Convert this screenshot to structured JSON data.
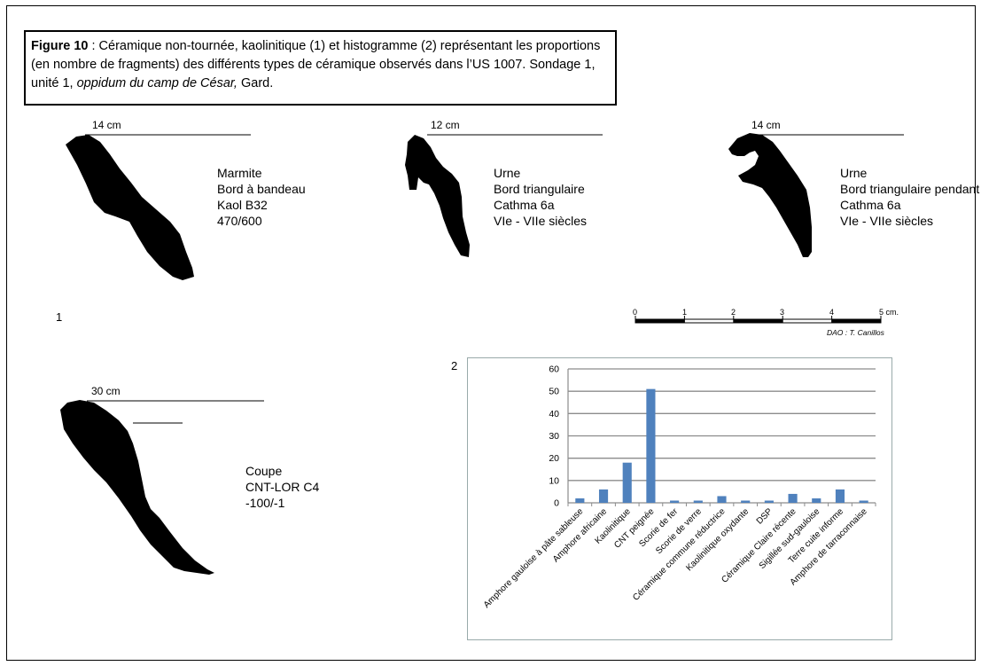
{
  "caption": {
    "fig_label": "Figure 10",
    "text_1": " : Céramique non-tournée, kaolinitique (1) et histogramme (2) représentant les proportions (en nombre de fragments) des différents types de céramique observés dans l’US 1007. Sondage 1, unité 1, ",
    "italic": "oppidum du camp de César,",
    "text_2": " Gard."
  },
  "sherds": [
    {
      "dim": "14 cm",
      "lines": [
        "Marmite",
        "Bord à bandeau",
        "Kaol B32",
        "470/600"
      ]
    },
    {
      "dim": "12 cm",
      "lines": [
        "Urne",
        "Bord triangulaire",
        "Cathma 6a",
        "VIe - VIIe siècles"
      ]
    },
    {
      "dim": "14 cm",
      "lines": [
        "Urne",
        "Bord triangulaire pendant",
        "Cathma 6a",
        "VIe - VIIe siècles"
      ]
    },
    {
      "dim": "30 cm",
      "lines": [
        "Coupe",
        "CNT-LOR C4",
        "-100/-1"
      ]
    }
  ],
  "part_labels": {
    "one": "1",
    "two": "2"
  },
  "scale": {
    "ticks": [
      "0",
      "1",
      "2",
      "3",
      "4",
      "5 cm."
    ],
    "credit": "DAO : T. Canillos"
  },
  "bar_color": "#4f81bd",
  "chart_data": {
    "type": "bar",
    "categories": [
      "Amphore gauloise à pâte sableuse",
      "Amphore africaine",
      "Kaolinitique",
      "CNT peignée",
      "Scorie de fer",
      "Scorie de verre",
      "Céramique commune réductrice",
      "Kaolinitique oxydante",
      "DSP",
      "Céramique Claire récente",
      "Sigillée sud-gauloise",
      "Terre cuite informe",
      "Amphore de tarraconnaise"
    ],
    "values": [
      2,
      6,
      18,
      51,
      1,
      1,
      3,
      1,
      1,
      4,
      2,
      6,
      1
    ],
    "ylim": [
      0,
      60
    ],
    "yticks": [
      0,
      10,
      20,
      30,
      40,
      50,
      60
    ],
    "grid": true,
    "title": "",
    "xlabel": "",
    "ylabel": ""
  }
}
